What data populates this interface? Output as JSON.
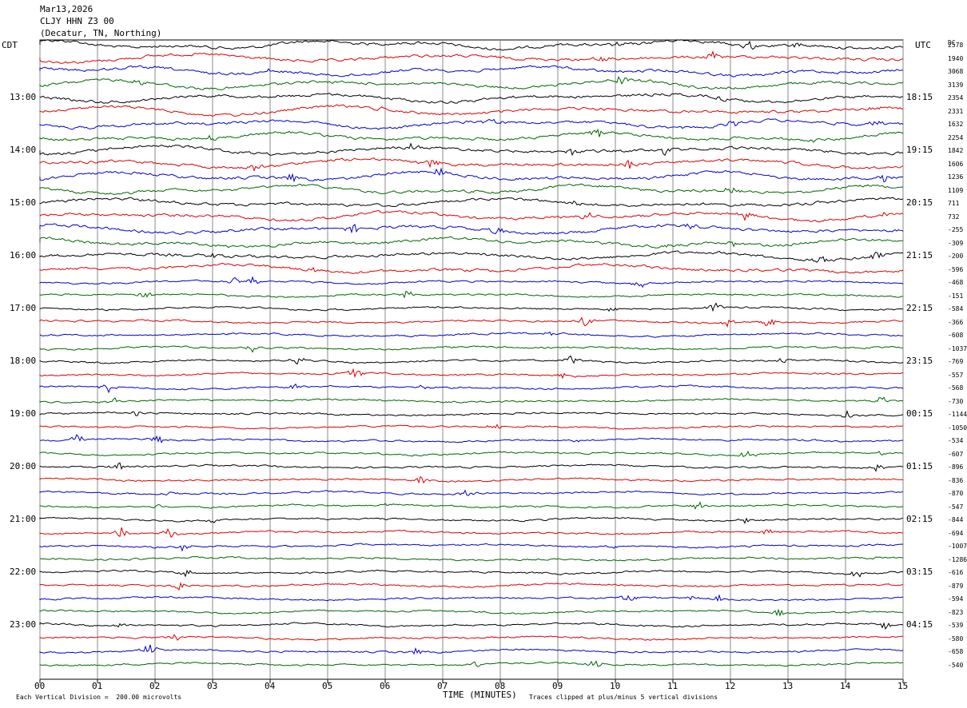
{
  "header": {
    "date": "Mar13,2026",
    "station": "CLJY HHN Z3 00",
    "location": "(Decatur, TN, Northing)"
  },
  "left_axis_label": "CDT",
  "right_axis_label": "UTC",
  "dc_label": "DC",
  "colors": [
    "#000000",
    "#dd0000",
    "#0000cc",
    "#006600"
  ],
  "chart_data": {
    "type": "line",
    "title": "",
    "xlabel": "TIME (MINUTES)",
    "x_ticks": [
      "00",
      "01",
      "02",
      "03",
      "04",
      "05",
      "06",
      "07",
      "08",
      "09",
      "10",
      "11",
      "12",
      "13",
      "14",
      "15"
    ],
    "xlim": [
      0,
      15
    ],
    "rows_per_hour": 4,
    "minutes_per_row": 15,
    "left_hour_labels": [
      "13:00",
      "14:00",
      "15:00",
      "16:00",
      "17:00",
      "18:00",
      "19:00",
      "20:00",
      "21:00",
      "22:00",
      "23:00"
    ],
    "right_hour_labels": [
      "18:15",
      "19:15",
      "20:15",
      "21:15",
      "22:15",
      "23:15",
      "00:15",
      "01:15",
      "02:15",
      "03:15",
      "04:15"
    ],
    "dc_offsets": [
      "2578",
      "1940",
      "3068",
      "3139",
      "2354",
      "2331",
      "1632",
      "2254",
      "1842",
      "1606",
      "1236",
      "1109",
      "711",
      "732",
      "-255",
      "-309",
      "-200",
      "-596",
      "-468",
      "-151",
      "-584",
      "-366",
      "-608",
      "-1037",
      "-769",
      "-557",
      "-568",
      "-730",
      "-1144",
      "-1050",
      "-534",
      "-607",
      "-896",
      "-836",
      "-870",
      "-547",
      "-844",
      "-694",
      "-1007",
      "-1286",
      "-616",
      "-879",
      "-594",
      "-823",
      "-539",
      "-580",
      "-658",
      "-540"
    ],
    "vertical_division": "Each Vertical Division =  200.00 microvolts",
    "clip_note": "Traces clipped at plus/minus 5 vertical divisions"
  }
}
